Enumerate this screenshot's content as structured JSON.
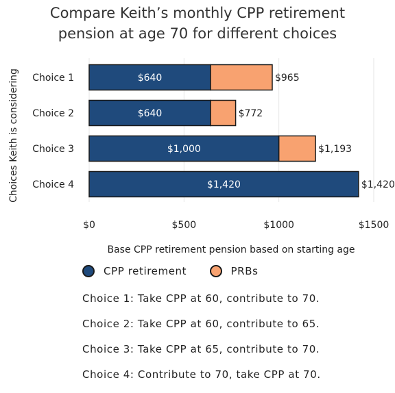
{
  "chart_data": {
    "type": "bar",
    "orientation": "horizontal",
    "stacked": true,
    "title": "Compare Keith’s monthly CPP retirement pension at age 70 for different choices",
    "title_lines": [
      "Compare Keith’s monthly CPP retirement",
      "pension at age 70 for different choices"
    ],
    "xlabel": "Base CPP retirement pension based on starting age",
    "ylabel": "Choices Keith is considering",
    "xlim": [
      0,
      1500
    ],
    "xticks": [
      0,
      500,
      1000,
      1500
    ],
    "xtick_labels": [
      "$0",
      "$500",
      "$1000",
      "$1500"
    ],
    "categories": [
      "Choice 1",
      "Choice 2",
      "Choice 3",
      "Choice 4"
    ],
    "series": [
      {
        "name": "CPP retirement",
        "color": "#1f4a7c",
        "values": [
          640,
          640,
          1000,
          1420
        ],
        "labels": [
          "$640",
          "$640",
          "$1,000",
          "$1,420"
        ]
      },
      {
        "name": "PRBs",
        "color": "#f8a270",
        "values": [
          325,
          132,
          193,
          0
        ]
      }
    ],
    "totals": [
      965,
      772,
      1193,
      1420
    ],
    "total_labels": [
      "$965",
      "$772",
      "$1,193",
      "$1,420"
    ],
    "grid": "vertical",
    "legend": "bottom"
  },
  "notes": [
    "Choice 1: Take CPP at 60, contribute to 70.",
    "Choice 2: Take CPP at 60, contribute to 65.",
    "Choice 3: Take CPP at 65, contribute to 70.",
    "Choice 4: Contribute to 70, take CPP at 70."
  ]
}
